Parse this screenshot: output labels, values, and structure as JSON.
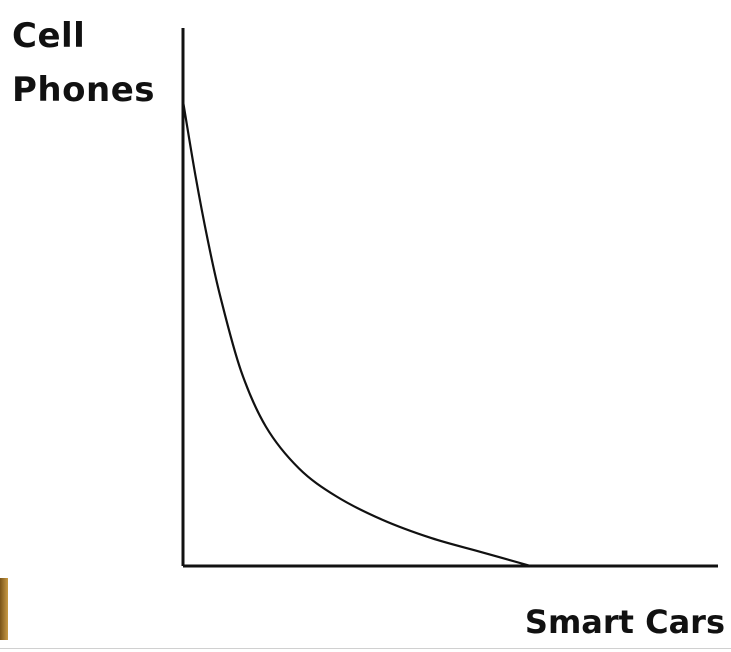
{
  "chart_data": {
    "type": "line",
    "title": "",
    "ylabel_lines": [
      "Cell",
      "Phones"
    ],
    "xlabel": "Smart Cars",
    "grid": false,
    "legend": "none",
    "line_color": "#111111",
    "axis_color": "#111111",
    "edge_bar_color": "#a87a2e",
    "xlim": [
      0,
      100
    ],
    "ylim": [
      0,
      100
    ],
    "series": [
      {
        "points": [
          [
            0,
            100
          ],
          [
            3,
            84
          ],
          [
            6,
            70
          ],
          [
            9,
            58
          ],
          [
            14,
            42
          ],
          [
            20,
            30
          ],
          [
            28,
            21
          ],
          [
            37,
            15
          ],
          [
            48,
            10
          ],
          [
            60,
            6
          ],
          [
            72,
            3
          ],
          [
            84,
            0
          ]
        ]
      }
    ]
  }
}
